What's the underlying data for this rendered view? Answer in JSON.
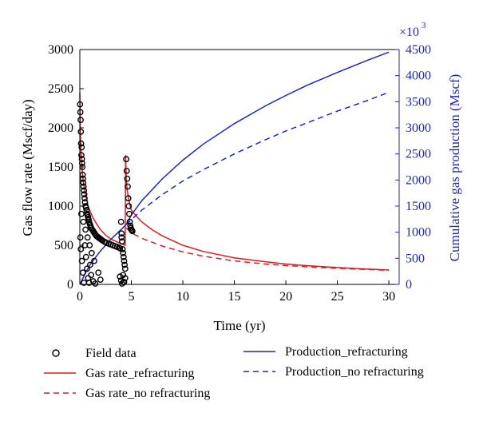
{
  "chart_data": {
    "type": "line",
    "xlabel": "Time (yr)",
    "ylabel_left": "Gas flow rate (Mscf/day)",
    "ylabel_right": "Cumulative gas production (Mscf)",
    "right_axis_multiplier": "×10",
    "right_axis_exponent": "3",
    "xlim": [
      0,
      31
    ],
    "ylim_left": [
      0,
      3000
    ],
    "ylim_right": [
      0,
      4500
    ],
    "x_ticks": [
      0,
      5,
      10,
      15,
      20,
      25,
      30
    ],
    "y_left_ticks": [
      0,
      500,
      1000,
      1500,
      2000,
      2500,
      3000
    ],
    "y_right_ticks": [
      0,
      500,
      1000,
      1500,
      2000,
      2500,
      3000,
      3500,
      4000,
      4500
    ],
    "colors": {
      "gas_rate": "#e31a1c",
      "production": "#1f24c8",
      "field": "#000000",
      "right_axis": "#1f24c8"
    },
    "legend": [
      {
        "label": "Field data",
        "style": "marker"
      },
      {
        "label": "Gas rate_refracturing",
        "style": "solid",
        "color": "#e31a1c"
      },
      {
        "label": "Gas rate_no refracturing",
        "style": "dashed",
        "color": "#e31a1c"
      },
      {
        "label": "Production_refracturing",
        "style": "solid",
        "color": "#1f24c8"
      },
      {
        "label": "Production_no refracturing",
        "style": "dashed",
        "color": "#1f24c8"
      }
    ],
    "series": [
      {
        "name": "Gas rate_refracturing",
        "axis": "left",
        "style": "solid",
        "x": [
          0,
          0.05,
          0.15,
          0.3,
          0.5,
          0.8,
          1.2,
          1.6,
          2.0,
          2.5,
          3.0,
          3.5,
          4.0,
          4.4,
          4.45,
          4.5,
          4.6,
          4.8,
          5.0,
          5.5,
          6,
          7,
          8,
          10,
          12,
          15,
          18,
          20,
          22,
          25,
          28,
          30
        ],
        "y": [
          2450,
          1950,
          1600,
          1350,
          1180,
          1000,
          870,
          780,
          700,
          630,
          580,
          550,
          520,
          500,
          1650,
          1350,
          1200,
          1050,
          950,
          870,
          800,
          700,
          620,
          500,
          420,
          340,
          290,
          260,
          240,
          215,
          195,
          185
        ]
      },
      {
        "name": "Gas rate_no refracturing",
        "axis": "left",
        "style": "dashed",
        "x": [
          4.5,
          5,
          6,
          7,
          8,
          10,
          12,
          15,
          18,
          20,
          22,
          25,
          28,
          30
        ],
        "y": [
          720,
          660,
          590,
          540,
          490,
          415,
          360,
          300,
          260,
          240,
          225,
          205,
          190,
          180
        ]
      },
      {
        "name": "Production_refracturing",
        "axis": "right",
        "style": "solid",
        "x": [
          0,
          0.5,
          1,
          2,
          3,
          4,
          4.5,
          5,
          6,
          8,
          10,
          12,
          15,
          18,
          20,
          22,
          25,
          28,
          30
        ],
        "y": [
          0,
          200,
          380,
          640,
          860,
          1050,
          1150,
          1330,
          1600,
          2020,
          2380,
          2690,
          3080,
          3420,
          3620,
          3810,
          4060,
          4300,
          4450
        ]
      },
      {
        "name": "Production_no refracturing",
        "axis": "right",
        "style": "dashed",
        "x": [
          4.5,
          5,
          6,
          8,
          10,
          12,
          15,
          18,
          20,
          22,
          25,
          28,
          30
        ],
        "y": [
          1150,
          1240,
          1420,
          1720,
          1980,
          2200,
          2500,
          2770,
          2940,
          3090,
          3320,
          3530,
          3680
        ]
      },
      {
        "name": "Field data",
        "axis": "left",
        "style": "marker",
        "x": [
          0.02,
          0.05,
          0.08,
          0.1,
          0.12,
          0.15,
          0.18,
          0.2,
          0.22,
          0.25,
          0.28,
          0.3,
          0.33,
          0.36,
          0.4,
          0.43,
          0.46,
          0.5,
          0.55,
          0.6,
          0.65,
          0.7,
          0.75,
          0.8,
          0.85,
          0.9,
          0.95,
          1.0,
          1.05,
          1.1,
          1.2,
          1.3,
          1.4,
          1.5,
          1.6,
          1.7,
          1.8,
          1.9,
          2.0,
          2.1,
          2.2,
          2.4,
          2.6,
          2.8,
          3.0,
          3.2,
          3.4,
          3.6,
          3.8,
          3.9,
          4.0,
          4.05,
          4.1,
          4.15,
          4.2,
          4.25,
          4.3,
          4.35,
          4.4,
          4.5,
          4.55,
          4.6,
          4.65,
          4.7,
          4.75,
          4.8,
          4.85,
          4.9,
          4.95,
          5.0,
          5.05,
          5.1,
          0.05,
          0.1,
          0.2,
          0.3,
          0.4,
          0.5,
          0.6,
          0.7,
          0.8,
          0.9,
          1.0,
          1.1,
          1.3,
          1.5,
          1.8,
          2.0,
          3.9,
          4.0,
          4.1,
          4.2,
          4.3,
          4.4,
          0.15,
          0.35,
          0.55,
          0.75,
          0.95,
          1.15,
          1.4,
          4.05,
          4.25
        ],
        "y": [
          2300,
          2200,
          2100,
          1950,
          1800,
          1650,
          1750,
          1600,
          1550,
          1500,
          1400,
          1350,
          1300,
          1250,
          1200,
          1150,
          1100,
          1050,
          1000,
          980,
          950,
          900,
          880,
          860,
          830,
          800,
          780,
          760,
          740,
          720,
          700,
          680,
          660,
          640,
          620,
          610,
          600,
          590,
          580,
          570,
          560,
          545,
          530,
          520,
          510,
          500,
          490,
          480,
          470,
          460,
          800,
          650,
          550,
          450,
          400,
          350,
          300,
          250,
          200,
          1600,
          1450,
          1350,
          1250,
          1100,
          1000,
          900,
          800,
          750,
          720,
          700,
          690,
          680,
          600,
          450,
          300,
          150,
          20,
          500,
          350,
          200,
          80,
          20,
          250,
          120,
          40,
          10,
          150,
          60,
          100,
          50,
          10,
          120,
          30,
          80,
          900,
          800,
          700,
          600,
          500,
          400,
          300,
          600,
          30
        ]
      }
    ]
  }
}
